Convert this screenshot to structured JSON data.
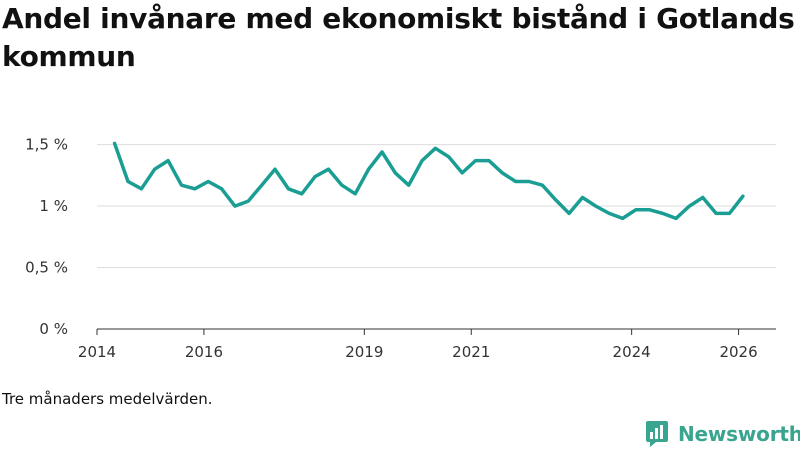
{
  "title": "Andel invånare med ekonomiskt bistånd i Gotlands kommun",
  "note": "Tre månaders medelvärden.",
  "brand": "Newsworthy",
  "colors": {
    "line": "#1a9e93",
    "grid": "#dddddd",
    "axis": "#333333",
    "brand": "#3aa58f"
  },
  "chart_data": {
    "type": "line",
    "title": "Andel invånare med ekonomiskt bistånd i Gotlands kommun",
    "xlabel": "",
    "ylabel": "",
    "ylim": [
      0,
      1.7
    ],
    "xlim": [
      2014,
      2026.7
    ],
    "grid": true,
    "yticks": [
      {
        "value": 0,
        "label": "0 %"
      },
      {
        "value": 0.5,
        "label": "0,5 %"
      },
      {
        "value": 1,
        "label": "1 %"
      },
      {
        "value": 1.5,
        "label": "1,5 %"
      }
    ],
    "xticks": [
      {
        "value": 2014,
        "label": "2014"
      },
      {
        "value": 2016,
        "label": "2016"
      },
      {
        "value": 2019,
        "label": "2019"
      },
      {
        "value": 2021,
        "label": "2021"
      },
      {
        "value": 2024,
        "label": "2024"
      },
      {
        "value": 2026,
        "label": "2026"
      }
    ],
    "series": [
      {
        "name": "Andel invånare med ekonomiskt bistånd",
        "x": [
          2014.33,
          2014.58,
          2014.83,
          2015.08,
          2015.33,
          2015.58,
          2015.83,
          2016.08,
          2016.33,
          2016.58,
          2016.83,
          2017.08,
          2017.33,
          2017.58,
          2017.83,
          2018.08,
          2018.33,
          2018.58,
          2018.83,
          2019.08,
          2019.33,
          2019.58,
          2019.83,
          2020.08,
          2020.33,
          2020.58,
          2020.83,
          2021.08,
          2021.33,
          2021.58,
          2021.83,
          2022.08,
          2022.33,
          2022.58,
          2022.83,
          2023.08,
          2023.33,
          2023.58,
          2023.83,
          2024.08,
          2024.33,
          2024.58,
          2024.83,
          2025.08,
          2025.33,
          2025.58,
          2025.83,
          2026.08
        ],
        "values": [
          1.51,
          1.2,
          1.14,
          1.3,
          1.37,
          1.17,
          1.14,
          1.2,
          1.14,
          1.0,
          1.04,
          1.17,
          1.3,
          1.14,
          1.1,
          1.24,
          1.3,
          1.17,
          1.1,
          1.3,
          1.44,
          1.27,
          1.17,
          1.37,
          1.47,
          1.4,
          1.27,
          1.37,
          1.37,
          1.27,
          1.2,
          1.2,
          1.17,
          1.05,
          0.94,
          1.07,
          1.0,
          0.94,
          0.9,
          0.97,
          0.97,
          0.94,
          0.9,
          1.0,
          1.07,
          0.94,
          0.94,
          1.08
        ]
      }
    ]
  }
}
